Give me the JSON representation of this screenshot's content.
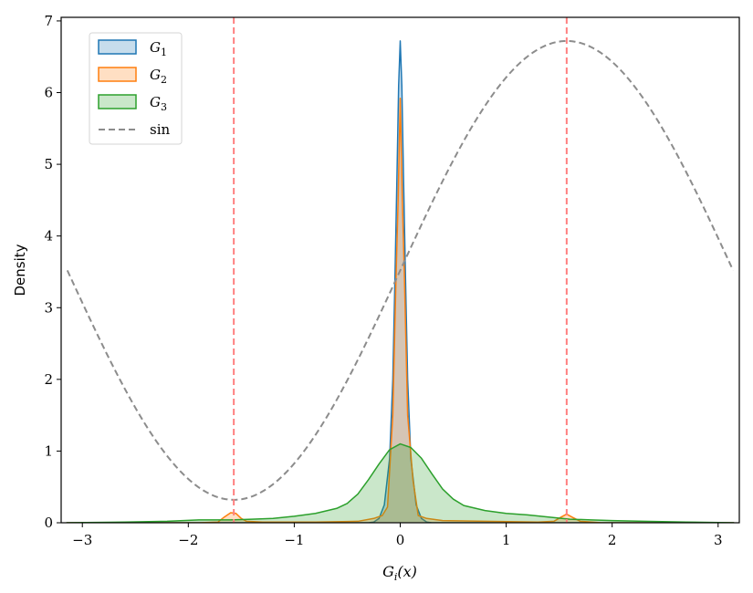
{
  "chart_data": {
    "type": "area",
    "title": "",
    "xlabel": "G",
    "xlabel_sub": "i",
    "xlabel_arg": "(x)",
    "ylabel": "Density",
    "xlim": [
      -3.2,
      3.2
    ],
    "ylim": [
      0,
      7.05
    ],
    "xticks": [
      -3,
      -2,
      -1,
      0,
      1,
      2,
      3
    ],
    "xtick_labels": [
      "−3",
      "−2",
      "−1",
      "0",
      "1",
      "2",
      "3"
    ],
    "yticks": [
      0,
      1,
      2,
      3,
      4,
      5,
      6,
      7
    ],
    "ytick_labels": [
      "0",
      "1",
      "2",
      "3",
      "4",
      "5",
      "6",
      "7"
    ],
    "grid": false,
    "legend_position": "top-left",
    "series": [
      {
        "name": "G",
        "sub": "1",
        "kind": "kde",
        "color": "#1f77b4",
        "fill": "#1f77b4",
        "fill_opacity": 0.25,
        "points": [
          [
            -3.15,
            0
          ],
          [
            -0.3,
            0
          ],
          [
            -0.25,
            0.01
          ],
          [
            -0.2,
            0.06
          ],
          [
            -0.15,
            0.25
          ],
          [
            -0.1,
            0.9
          ],
          [
            -0.07,
            2.0
          ],
          [
            -0.05,
            3.4
          ],
          [
            -0.03,
            4.9
          ],
          [
            -0.015,
            6.1
          ],
          [
            0,
            6.72
          ],
          [
            0.015,
            6.1
          ],
          [
            0.03,
            4.9
          ],
          [
            0.05,
            3.4
          ],
          [
            0.07,
            2.0
          ],
          [
            0.1,
            0.9
          ],
          [
            0.15,
            0.25
          ],
          [
            0.2,
            0.06
          ],
          [
            0.25,
            0.01
          ],
          [
            0.3,
            0
          ],
          [
            3.15,
            0
          ]
        ]
      },
      {
        "name": "G",
        "sub": "2",
        "kind": "kde",
        "color": "#ff7f0e",
        "fill": "#ff7f0e",
        "fill_opacity": 0.25,
        "points": [
          [
            -3.15,
            0
          ],
          [
            -1.9,
            0
          ],
          [
            -1.72,
            0.01
          ],
          [
            -1.66,
            0.08
          ],
          [
            -1.6,
            0.14
          ],
          [
            -1.55,
            0.13
          ],
          [
            -1.5,
            0.06
          ],
          [
            -1.45,
            0.02
          ],
          [
            -1.3,
            0.01
          ],
          [
            -0.8,
            0.01
          ],
          [
            -0.4,
            0.02
          ],
          [
            -0.25,
            0.06
          ],
          [
            -0.17,
            0.1
          ],
          [
            -0.12,
            0.22
          ],
          [
            -0.07,
            1.5
          ],
          [
            -0.04,
            3.4
          ],
          [
            -0.02,
            4.5
          ],
          [
            0,
            5.92
          ],
          [
            0.02,
            4.5
          ],
          [
            0.04,
            3.4
          ],
          [
            0.07,
            1.5
          ],
          [
            0.12,
            0.6
          ],
          [
            0.17,
            0.1
          ],
          [
            0.25,
            0.06
          ],
          [
            0.4,
            0.03
          ],
          [
            0.8,
            0.02
          ],
          [
            1.3,
            0.01
          ],
          [
            1.45,
            0.02
          ],
          [
            1.52,
            0.08
          ],
          [
            1.57,
            0.12
          ],
          [
            1.62,
            0.08
          ],
          [
            1.7,
            0.02
          ],
          [
            1.9,
            0
          ],
          [
            3.15,
            0
          ]
        ]
      },
      {
        "name": "G",
        "sub": "3",
        "kind": "kde",
        "color": "#2ca02c",
        "fill": "#2ca02c",
        "fill_opacity": 0.25,
        "points": [
          [
            -3.15,
            0
          ],
          [
            -2.6,
            0.01
          ],
          [
            -2.2,
            0.02
          ],
          [
            -1.9,
            0.04
          ],
          [
            -1.6,
            0.04
          ],
          [
            -1.4,
            0.05
          ],
          [
            -1.2,
            0.06
          ],
          [
            -1.0,
            0.09
          ],
          [
            -0.8,
            0.13
          ],
          [
            -0.6,
            0.2
          ],
          [
            -0.5,
            0.27
          ],
          [
            -0.4,
            0.4
          ],
          [
            -0.3,
            0.6
          ],
          [
            -0.2,
            0.82
          ],
          [
            -0.1,
            1.02
          ],
          [
            0,
            1.1
          ],
          [
            0.1,
            1.05
          ],
          [
            0.2,
            0.9
          ],
          [
            0.3,
            0.68
          ],
          [
            0.4,
            0.47
          ],
          [
            0.5,
            0.33
          ],
          [
            0.6,
            0.24
          ],
          [
            0.8,
            0.17
          ],
          [
            1.0,
            0.13
          ],
          [
            1.2,
            0.11
          ],
          [
            1.4,
            0.08
          ],
          [
            1.6,
            0.05
          ],
          [
            1.8,
            0.04
          ],
          [
            2.0,
            0.03
          ],
          [
            2.3,
            0.02
          ],
          [
            2.7,
            0.01
          ],
          [
            3.15,
            0
          ]
        ]
      },
      {
        "name": "sin",
        "kind": "sin",
        "color": "#8c8c8c",
        "dash": "7 4",
        "x_from": -3.14159,
        "x_to": 3.14159,
        "offset": 3.52,
        "amplitude": 3.2
      }
    ],
    "vlines": [
      {
        "x": -1.5708,
        "color": "#ff8080",
        "dash": "7 4"
      },
      {
        "x": 1.5708,
        "color": "#ff8080",
        "dash": "7 4"
      }
    ]
  }
}
